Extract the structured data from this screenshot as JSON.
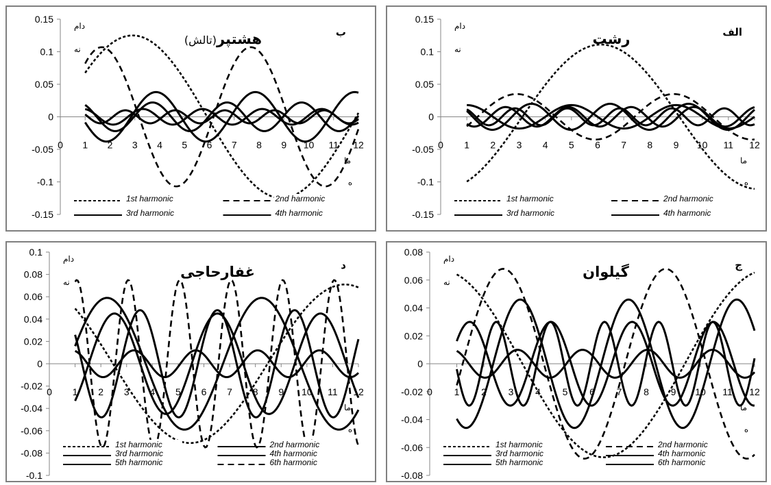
{
  "chart_data": [
    {
      "type": "line",
      "panel_letter": "ب",
      "title": "هشتپر",
      "title_sub": "(تالش)",
      "ylabel": [
        "دام",
        "نه"
      ],
      "xlabel": [
        "ما",
        "ه"
      ],
      "xlim": [
        0,
        12
      ],
      "ylim": [
        -0.15,
        0.15
      ],
      "xticks": [
        0,
        1,
        2,
        3,
        4,
        5,
        6,
        7,
        8,
        9,
        10,
        11,
        12
      ],
      "yticks": [
        "0.15",
        "0.1",
        "0.05",
        "0",
        "-0.05",
        "-0.1",
        "-0.15"
      ],
      "legend_columns": 2,
      "series": [
        {
          "name": "1st harmonic",
          "dash": "dotted",
          "amp": 0.125,
          "k": 1,
          "phase": -1.0
        },
        {
          "name": "2nd harmonic",
          "dash": "dashed",
          "amp": 0.107,
          "k": 2,
          "phase": -0.7
        },
        {
          "name": "3rd harmonic",
          "dash": "solid",
          "amp": 0.038,
          "k": 3,
          "phase": 1.8
        },
        {
          "name": "4th harmonic",
          "dash": "solid",
          "amp": 0.022,
          "k": 4,
          "phase": 0.6
        },
        {
          "dash": "solid",
          "amp": 0.012,
          "k": 5,
          "phase": 0.2
        },
        {
          "dash": "solid",
          "amp": 0.01,
          "k": 6,
          "phase": 1.2
        }
      ]
    },
    {
      "type": "line",
      "panel_letter": "الف",
      "title": "رشت",
      "title_sub": "",
      "ylabel": [
        "دام",
        "نه"
      ],
      "xlabel": [
        "ما",
        "ه"
      ],
      "xlim": [
        0,
        12
      ],
      "ylim": [
        -0.15,
        0.15
      ],
      "xticks": [
        0,
        1,
        2,
        3,
        4,
        5,
        6,
        7,
        8,
        9,
        10,
        11,
        12
      ],
      "yticks": [
        "0.15",
        "0.1",
        "0.05",
        "0",
        "-0.05",
        "-0.1",
        "-0.15"
      ],
      "legend_columns": 2,
      "series": [
        {
          "name": "1st harmonic",
          "dash": "dotted",
          "amp": 0.111,
          "k": 1,
          "phase": 3.6
        },
        {
          "name": "2nd harmonic",
          "dash": "dashed",
          "amp": 0.035,
          "k": 2,
          "phase": -2.0
        },
        {
          "name": "3rd harmonic",
          "dash": "solid",
          "amp": 0.018,
          "k": 3,
          "phase": 0.0
        },
        {
          "name": "4th harmonic",
          "dash": "solid",
          "amp": 0.02,
          "k": 4,
          "phase": 1.1
        },
        {
          "dash": "solid",
          "amp": 0.015,
          "k": 5,
          "phase": 2.4
        },
        {
          "dash": "solid",
          "amp": 0.013,
          "k": 6,
          "phase": 0.5
        }
      ]
    },
    {
      "type": "line",
      "panel_letter": "د",
      "title": "غفارحاجی",
      "title_sub": "",
      "ylabel": [
        "دام",
        "نه"
      ],
      "xlabel": [
        "ما",
        "ه"
      ],
      "xlim": [
        0,
        12
      ],
      "ylim": [
        -0.1,
        0.1
      ],
      "xticks": [
        0,
        1,
        2,
        3,
        4,
        5,
        6,
        7,
        8,
        9,
        10,
        11,
        12
      ],
      "yticks": [
        "0.1",
        "0.08",
        "0.06",
        "0.04",
        "0.02",
        "0",
        "-0.02",
        "-0.04",
        "-0.06",
        "-0.08",
        "-0.1"
      ],
      "legend_columns": 2,
      "series": [
        {
          "name": "1st harmonic",
          "dash": "dotted",
          "amp": 0.071,
          "k": 1,
          "phase": 0.8
        },
        {
          "name": "2nd harmonic",
          "dash": "solid",
          "amp": 0.059,
          "k": 2,
          "phase": -1.3
        },
        {
          "name": "3rd harmonic",
          "dash": "solid",
          "amp": 0.045,
          "k": 3,
          "phase": -2.4
        },
        {
          "name": "4th harmonic",
          "dash": "solid",
          "amp": 0.048,
          "k": 4,
          "phase": 1.0
        },
        {
          "name": "5th harmonic",
          "dash": "solid",
          "amp": 0.012,
          "k": 5,
          "phase": 0.3
        },
        {
          "name": "6th harmonic",
          "dash": "dashed",
          "amp": 0.075,
          "k": 6,
          "phase": -0.2
        }
      ]
    },
    {
      "type": "line",
      "panel_letter": "ج",
      "title": "گیلوان",
      "title_sub": "",
      "ylabel": [
        "دام",
        "نه"
      ],
      "xlabel": [
        "ما",
        "ه"
      ],
      "xlim": [
        0,
        12
      ],
      "ylim": [
        -0.08,
        0.08
      ],
      "xticks": [
        0,
        1,
        2,
        3,
        4,
        5,
        6,
        7,
        8,
        9,
        10,
        11,
        12
      ],
      "yticks": [
        "0.08",
        "0.06",
        "0.04",
        "0.02",
        "0",
        "-0.02",
        "-0.04",
        "-0.06",
        "-0.08"
      ],
      "legend_columns": 2,
      "series": [
        {
          "name": "1st harmonic",
          "dash": "dotted",
          "amp": 0.067,
          "k": 1,
          "phase": 0.3
        },
        {
          "name": "2nd harmonic",
          "dash": "dashed",
          "amp": 0.068,
          "k": 2,
          "phase": -1.8
        },
        {
          "name": "3rd harmonic",
          "dash": "solid",
          "amp": 0.046,
          "k": 3,
          "phase": 2.6
        },
        {
          "name": "4th harmonic",
          "dash": "solid",
          "amp": 0.03,
          "k": 4,
          "phase": -1.0
        },
        {
          "name": "5th harmonic",
          "dash": "solid",
          "amp": 0.01,
          "k": 5,
          "phase": 0.4
        },
        {
          "name": "6th harmonic",
          "dash": "solid",
          "amp": 0.03,
          "k": 6,
          "phase": 1.7
        }
      ]
    }
  ]
}
